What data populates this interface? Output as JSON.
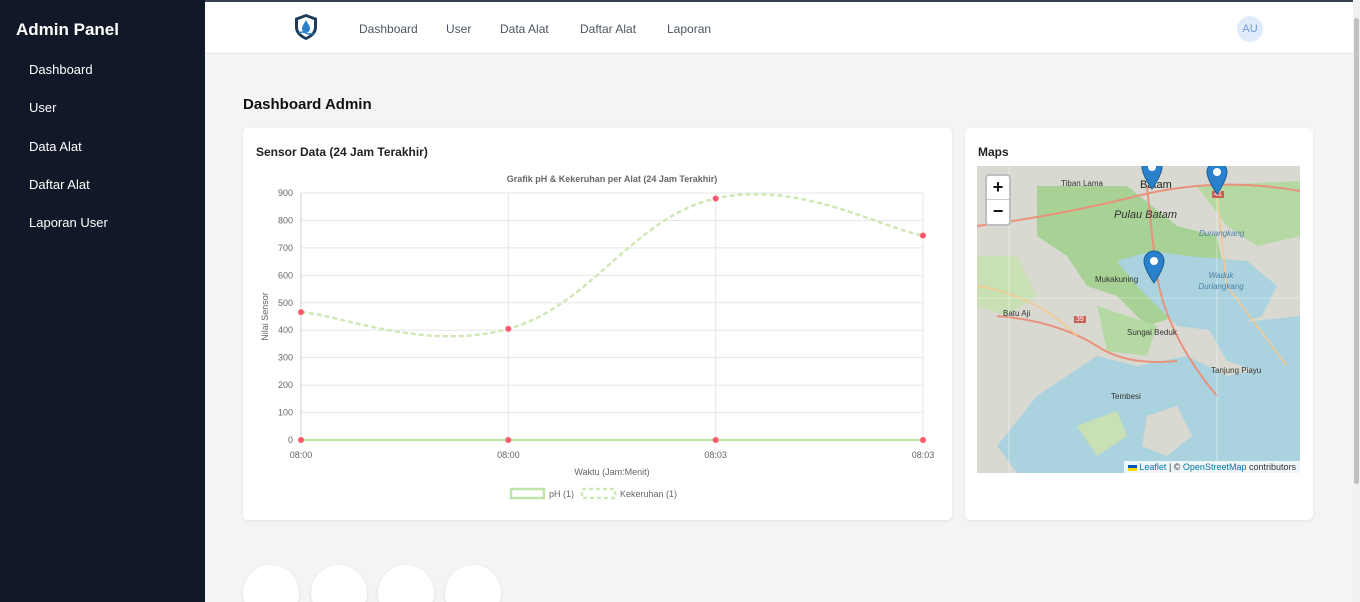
{
  "sidebar": {
    "title": "Admin Panel",
    "items": [
      {
        "label": "Dashboard"
      },
      {
        "label": "User"
      },
      {
        "label": "Data Alat"
      },
      {
        "label": "Daftar Alat"
      },
      {
        "label": "Laporan User"
      }
    ]
  },
  "topbar": {
    "logo_icon": "water-drop-logo-icon",
    "nav": [
      {
        "label": "Dashboard"
      },
      {
        "label": "User"
      },
      {
        "label": "Data Alat"
      },
      {
        "label": "Daftar Alat"
      },
      {
        "label": "Laporan"
      }
    ],
    "avatar": "AU"
  },
  "page": {
    "title": "Dashboard Admin"
  },
  "chart_card": {
    "title": "Sensor Data (24 Jam Terakhir)"
  },
  "chart_data": {
    "type": "line",
    "title": "Grafik pH & Kekeruhan per Alat (24 Jam Terakhir)",
    "xlabel": "Waktu (Jam:Menit)",
    "ylabel": "Nilai Sensor",
    "categories": [
      "08:00",
      "08:00",
      "08:03",
      "08:03"
    ],
    "ylim": [
      0,
      900
    ],
    "yticks": [
      0,
      100,
      200,
      300,
      400,
      500,
      600,
      700,
      800,
      900
    ],
    "series": [
      {
        "name": "pH (1)",
        "values": [
          0,
          0,
          0,
          0
        ],
        "color": "#bfe3a8",
        "point_color": "#ff5a6e",
        "dashed": false
      },
      {
        "name": "Kekeruhan (1)",
        "values": [
          466,
          405,
          880,
          745
        ],
        "color": "#cfe8b5",
        "point_color": "#ff5a6e",
        "dashed": true
      }
    ],
    "grid": true,
    "legend": "bottom"
  },
  "maps_card": {
    "title": "Maps",
    "zoom_in": "+",
    "zoom_out": "−",
    "places": {
      "batam": "Batam",
      "pulau_batam": "Pulau Batam",
      "tiban_lama": "Tiban Lama",
      "mukakuning": "Mukakuning",
      "duriangkang": "Duriangkang",
      "waduk": "Waduk Duriangkang",
      "batu_aji": "Batu Aji",
      "sungai_beduk": "Sungai Beduk",
      "tanjung_piayu": "Tanjung Piayu",
      "tembesi": "Tembesi",
      "road_39": "39",
      "road_41": "41"
    },
    "attribution": {
      "leaflet": "Leaflet",
      "separator": " | © ",
      "osm": "OpenStreetMap",
      "suffix": " contributors"
    }
  },
  "colors": {
    "sidebar_bg": "#111827",
    "marker": "#2a81cb",
    "water": "#aad3df",
    "land": "#d6e8c8"
  }
}
